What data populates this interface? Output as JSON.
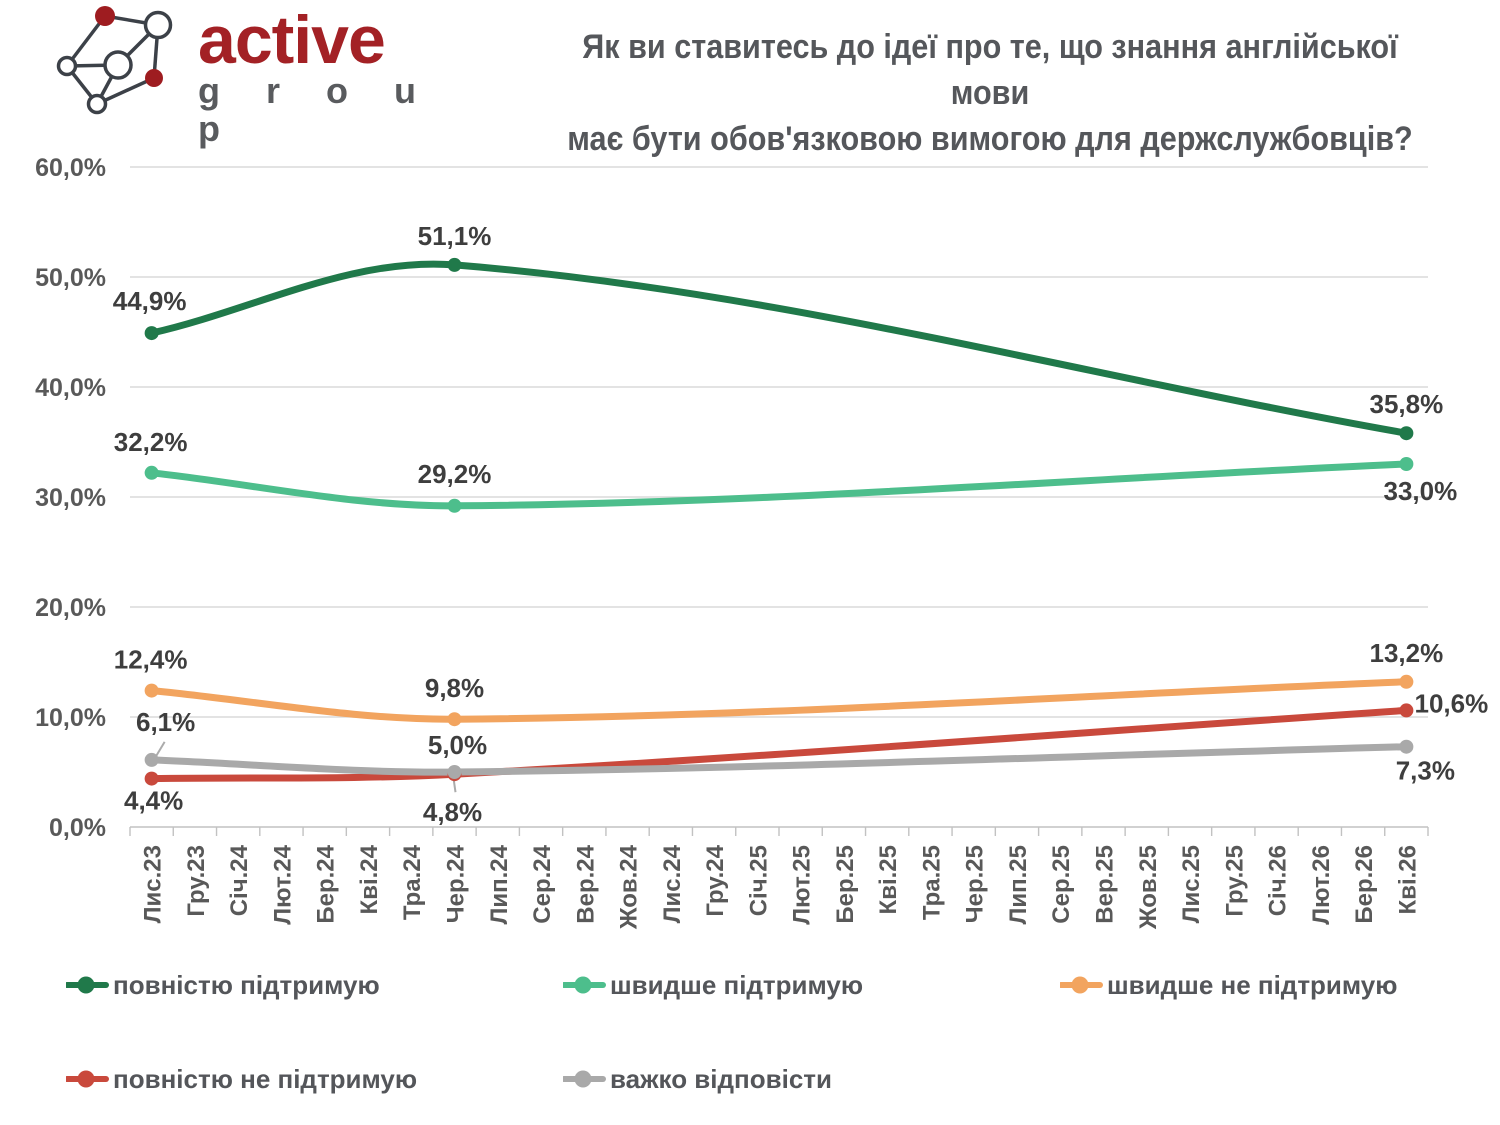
{
  "brand": {
    "name": "active",
    "subname": "g r o u p"
  },
  "title": {
    "line1": "Як ви ставитесь до ідеї про те, що знання англійської мови",
    "line2": "має бути обов'язковою вимогою для держслужбовців?"
  },
  "chart_data": {
    "type": "line",
    "title": "Як ви ставитесь до ідеї про те, що знання англійської мови має бути обов'язковою вимогою для держслужбовців?",
    "line_style": "smooth",
    "grid": true,
    "legend_position": "bottom",
    "x_categories": [
      "Лис.23",
      "Гру.23",
      "Січ.24",
      "Лют.24",
      "Бер.24",
      "Кві.24",
      "Тра.24",
      "Чер.24",
      "Лип.24",
      "Сер.24",
      "Вер.24",
      "Жов.24",
      "Лис.24",
      "Гру.24",
      "Січ.25",
      "Лют.25",
      "Бер.25",
      "Кві.25",
      "Тра.25",
      "Чер.25",
      "Лип.25",
      "Сер.25",
      "Вер.25",
      "Жов.25",
      "Лис.25",
      "Гру.25",
      "Січ.26",
      "Лют.26",
      "Бер.26",
      "Кві.26"
    ],
    "data_point_category_indices": [
      0,
      7,
      29
    ],
    "y_axis": {
      "min": 0,
      "max": 60,
      "step": 10,
      "tick_labels": [
        "0,0%",
        "10,0%",
        "20,0%",
        "30,0%",
        "40,0%",
        "50,0%",
        "60,0%"
      ]
    },
    "series": [
      {
        "name": "повністю підтримую",
        "color": "#20794A",
        "values": [
          44.9,
          51.1,
          35.8
        ],
        "labels": [
          "44,9%",
          "51,1%",
          "35,8%"
        ],
        "label_offsets": [
          [
            -2,
            -32
          ],
          [
            0,
            -29
          ],
          [
            0,
            -29
          ]
        ]
      },
      {
        "name": "швидше підтримую",
        "color": "#4DBE8C",
        "values": [
          32.2,
          29.2,
          33.0
        ],
        "labels": [
          "32,2%",
          "29,2%",
          "33,0%"
        ],
        "label_offsets": [
          [
            -1,
            -31
          ],
          [
            0,
            -32
          ],
          [
            14,
            27
          ]
        ]
      },
      {
        "name": "швидше не підтримую",
        "color": "#F2A45F",
        "values": [
          12.4,
          9.8,
          13.2
        ],
        "labels": [
          "12,4%",
          "9,8%",
          "13,2%"
        ],
        "label_offsets": [
          [
            -1,
            -31
          ],
          [
            0,
            -31
          ],
          [
            0,
            -29
          ]
        ]
      },
      {
        "name": "повністю не підтримую",
        "color": "#C9493C",
        "values": [
          4.4,
          4.8,
          10.6
        ],
        "labels": [
          "4,4%",
          "4,8%",
          "10,6%"
        ],
        "label_offsets": [
          [
            2,
            22
          ],
          [
            -2,
            38
          ],
          [
            45,
            -7
          ]
        ]
      },
      {
        "name": "важко відповісти",
        "color": "#A9A9A9",
        "values": [
          6.1,
          5.0,
          7.3
        ],
        "labels": [
          "6,1%",
          "5,0%",
          "7,3%"
        ],
        "label_offsets": [
          [
            14,
            -38
          ],
          [
            3,
            -27
          ],
          [
            19,
            24
          ]
        ]
      }
    ],
    "leader_lines": [
      {
        "series_index": 4,
        "point_index": 0,
        "from_offset": [
          13,
          -18
        ],
        "to_offset": [
          4,
          -3
        ]
      },
      {
        "series_index": 3,
        "point_index": 1,
        "from_offset": [
          -1,
          4
        ],
        "to_offset": [
          1,
          18
        ]
      }
    ]
  }
}
